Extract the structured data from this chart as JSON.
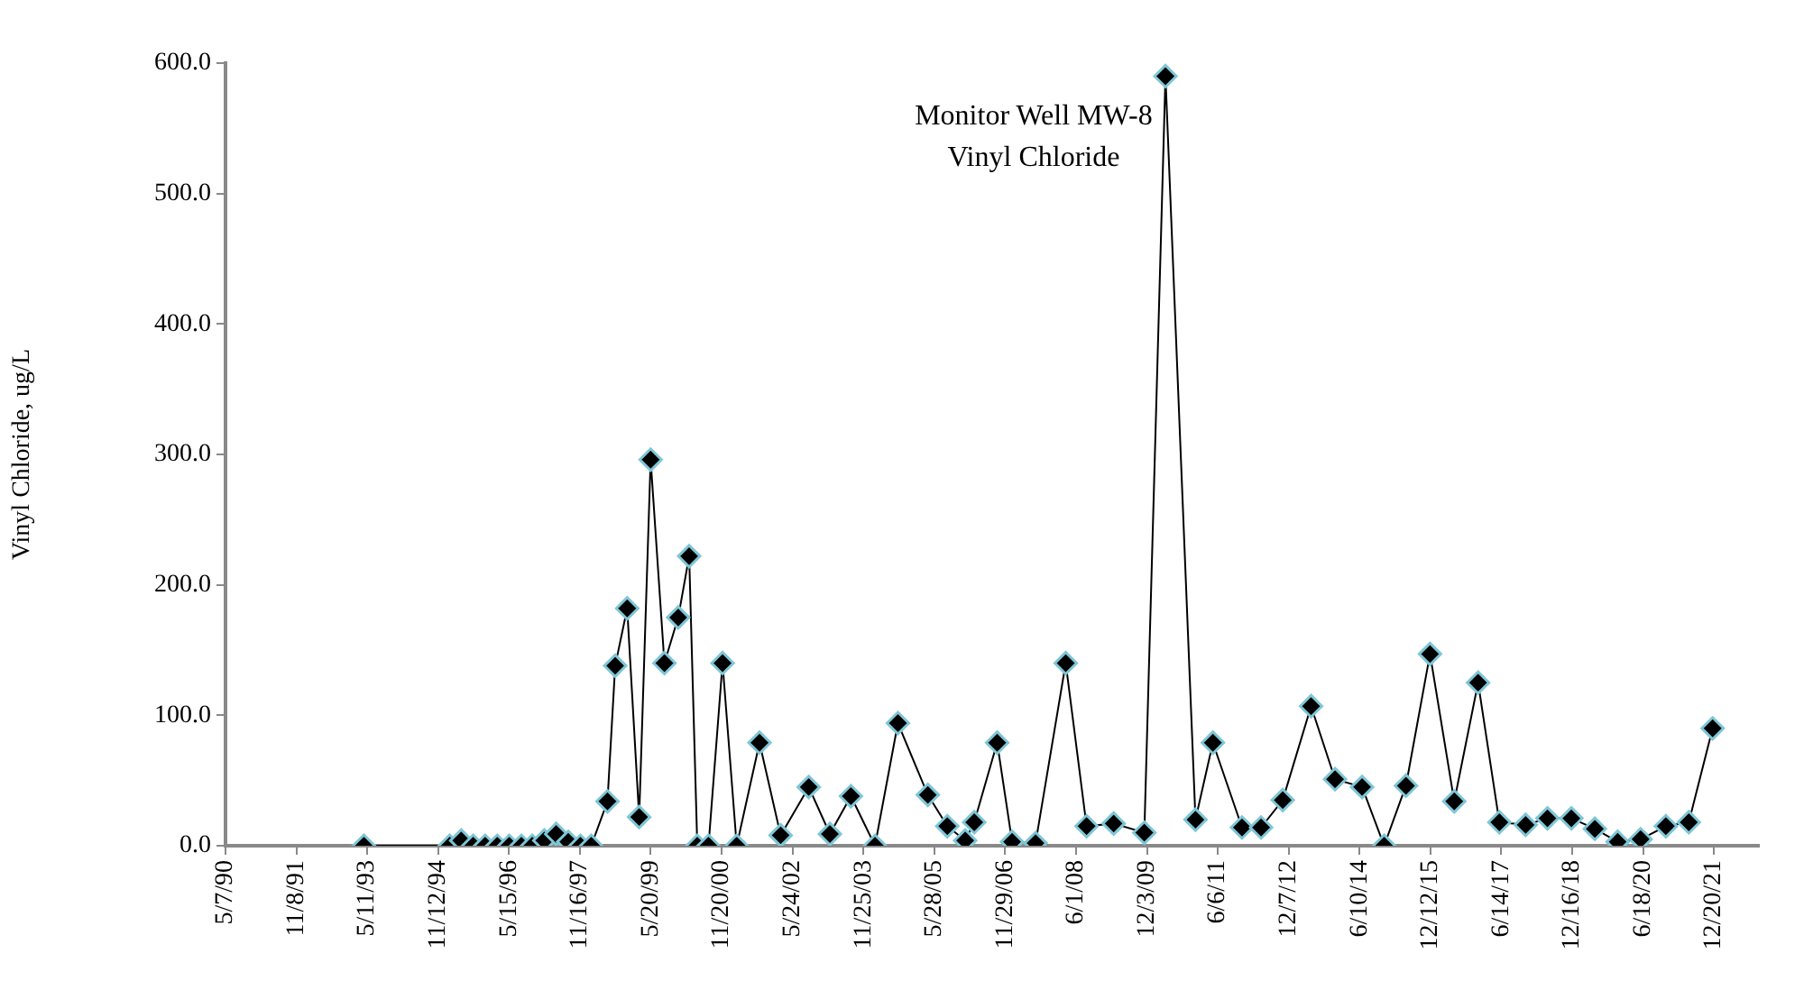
{
  "chart_data": {
    "type": "line",
    "title": "Monitor Well MW-8",
    "subtitle": "Vinyl Chloride",
    "ylabel": "Vinyl Chloride, ug/L",
    "x": [
      "1993-04-15",
      "1995-02-10",
      "1995-05-10",
      "1995-08-11",
      "1995-11-12",
      "1996-02-14",
      "1996-05-17",
      "1996-08-19",
      "1996-11-11",
      "1997-02-13",
      "1997-05-16",
      "1997-08-18",
      "1997-11-20",
      "1998-02-12",
      "1998-06-18",
      "1998-08-17",
      "1998-11-18",
      "1999-02-19",
      "1999-05-19",
      "1999-09-03",
      "1999-12-19",
      "2000-03-13",
      "2000-05-15",
      "2000-08-10",
      "2000-11-27",
      "2001-03-17",
      "2001-09-10",
      "2002-02-21",
      "2002-09-27",
      "2003-03-10",
      "2003-08-20",
      "2004-02-23",
      "2004-08-19",
      "2005-04-08",
      "2005-09-06",
      "2006-01-23",
      "2006-04-03",
      "2006-09-28",
      "2007-01-22",
      "2007-07-23",
      "2008-03-13",
      "2008-08-22",
      "2009-03-20",
      "2009-11-13",
      "2010-04-26",
      "2010-12-15",
      "2011-04-29",
      "2011-12-11",
      "2012-05-07",
      "2012-10-22",
      "2013-05-30",
      "2013-12-02",
      "2014-06-30",
      "2014-12-18",
      "2015-06-05",
      "2015-12-09",
      "2016-06-14",
      "2016-12-16",
      "2017-05-30",
      "2017-12-20",
      "2018-06-07",
      "2018-12-10",
      "2019-06-10",
      "2019-12-04",
      "2020-05-30",
      "2020-12-12",
      "2021-06-08",
      "2021-12-10"
    ],
    "series": [
      {
        "color": "#000000",
        "values": [
          0,
          0,
          4,
          0,
          0,
          0,
          0,
          0,
          0,
          4,
          9,
          3,
          0,
          0,
          34,
          138,
          182,
          22,
          296,
          140,
          175,
          222,
          0,
          0,
          140,
          0,
          79,
          8,
          45,
          9,
          38,
          0,
          94,
          39,
          15,
          4,
          18,
          79,
          3,
          2,
          140,
          15,
          17,
          10,
          590,
          20,
          79,
          14,
          14,
          35,
          107,
          51,
          45,
          0,
          46,
          147,
          34,
          125,
          18,
          16,
          21,
          21,
          13,
          3,
          5,
          15,
          18,
          90
        ]
      }
    ],
    "marker": "diamond",
    "legend": false,
    "grid": false,
    "xlim": [
      "1990-05-07",
      "2022-12-04"
    ],
    "xticks": [
      {
        "value": "1990-05-07",
        "label": "5/7/90"
      },
      {
        "value": "1991-11-08",
        "label": "11/8/91"
      },
      {
        "value": "1993-05-11",
        "label": "5/11/93"
      },
      {
        "value": "1994-11-12",
        "label": "11/12/94"
      },
      {
        "value": "1996-05-15",
        "label": "5/15/96"
      },
      {
        "value": "1997-11-16",
        "label": "11/16/97"
      },
      {
        "value": "1999-05-20",
        "label": "5/20/99"
      },
      {
        "value": "2000-11-20",
        "label": "11/20/00"
      },
      {
        "value": "2002-05-24",
        "label": "5/24/02"
      },
      {
        "value": "2003-11-25",
        "label": "11/25/03"
      },
      {
        "value": "2005-05-28",
        "label": "5/28/05"
      },
      {
        "value": "2006-11-29",
        "label": "11/29/06"
      },
      {
        "value": "2008-06-01",
        "label": "6/1/08"
      },
      {
        "value": "2009-12-03",
        "label": "12/3/09"
      },
      {
        "value": "2011-06-06",
        "label": "6/6/11"
      },
      {
        "value": "2012-12-07",
        "label": "12/7/12"
      },
      {
        "value": "2014-06-10",
        "label": "6/10/14"
      },
      {
        "value": "2015-12-12",
        "label": "12/12/15"
      },
      {
        "value": "2017-06-14",
        "label": "6/14/17"
      },
      {
        "value": "2018-12-16",
        "label": "12/16/18"
      },
      {
        "value": "2020-06-18",
        "label": "6/18/20"
      },
      {
        "value": "2021-12-20",
        "label": "12/20/21"
      }
    ],
    "ylim": [
      0,
      600
    ],
    "yticks": [
      {
        "value": 0,
        "label": "0.0"
      },
      {
        "value": 100,
        "label": "100.0"
      },
      {
        "value": 200,
        "label": "200.0"
      },
      {
        "value": 300,
        "label": "300.0"
      },
      {
        "value": 400,
        "label": "400.0"
      },
      {
        "value": 500,
        "label": "500.0"
      },
      {
        "value": 600,
        "label": "600.0"
      }
    ]
  }
}
